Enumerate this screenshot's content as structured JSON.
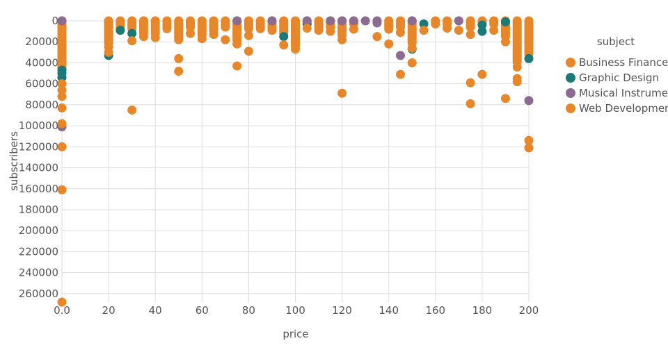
{
  "colors": {
    "business_finance": "#e8872a",
    "graphic_design": "#1b7a78",
    "musical_instruments": "#8b6b8f",
    "web_development": "#e8872a",
    "grid": "#dddddd",
    "text": "#555555"
  },
  "chart_data": {
    "type": "scatter",
    "title": "",
    "xlabel": "price",
    "ylabel": "subscribers",
    "xlim": [
      0,
      200
    ],
    "ylim": [
      0,
      268000
    ],
    "y_reversed": true,
    "x_ticks": [
      0,
      20,
      40,
      60,
      80,
      100,
      120,
      140,
      160,
      180,
      200
    ],
    "x_tick_labels": [
      "0.0",
      "20",
      "40",
      "60",
      "80",
      "100",
      "120",
      "140",
      "160",
      "180",
      "200"
    ],
    "y_ticks": [
      0,
      20000,
      40000,
      60000,
      80000,
      100000,
      120000,
      140000,
      160000,
      180000,
      200000,
      220000,
      240000,
      260000
    ],
    "y_tick_labels": [
      "0",
      "20000",
      "40000",
      "60000",
      "80000",
      "100000",
      "120000",
      "140000",
      "160000",
      "180000",
      "200000",
      "220000",
      "240000",
      "260000"
    ],
    "grid": true,
    "legend": {
      "title": "subject",
      "placement": "right"
    },
    "series": [
      {
        "name": "Business Finance",
        "color_key": "business_finance",
        "points": [
          [
            0,
            60000
          ],
          [
            0,
            66000
          ],
          [
            0,
            72000
          ],
          [
            0,
            83000
          ],
          [
            0,
            98000
          ],
          [
            0,
            120000
          ],
          [
            0,
            161000
          ],
          [
            0,
            268000
          ],
          [
            30,
            85000
          ],
          [
            50,
            36000
          ],
          [
            50,
            48000
          ],
          [
            75,
            43000
          ],
          [
            80,
            29000
          ],
          [
            120,
            69000
          ],
          [
            140,
            22000
          ],
          [
            145,
            51000
          ],
          [
            150,
            40000
          ],
          [
            175,
            59000
          ],
          [
            175,
            79000
          ],
          [
            180,
            51000
          ],
          [
            190,
            74000
          ],
          [
            195,
            44000
          ],
          [
            195,
            55000
          ],
          [
            195,
            58000
          ],
          [
            200,
            114000
          ],
          [
            200,
            121000
          ],
          [
            20,
            25000
          ],
          [
            20,
            30000
          ],
          [
            30,
            19000
          ],
          [
            35,
            15000
          ],
          [
            40,
            16000
          ],
          [
            55,
            12000
          ],
          [
            60,
            17000
          ],
          [
            65,
            13000
          ],
          [
            70,
            18000
          ],
          [
            75,
            22000
          ],
          [
            80,
            14000
          ],
          [
            95,
            23000
          ],
          [
            100,
            27000
          ],
          [
            105,
            7000
          ],
          [
            110,
            9000
          ],
          [
            115,
            10000
          ],
          [
            120,
            18000
          ],
          [
            125,
            8000
          ],
          [
            135,
            15000
          ],
          [
            140,
            8000
          ],
          [
            145,
            11000
          ],
          [
            150,
            26000
          ],
          [
            155,
            9000
          ],
          [
            165,
            7000
          ],
          [
            170,
            9000
          ],
          [
            175,
            13000
          ],
          [
            185,
            9000
          ],
          [
            190,
            20000
          ]
        ]
      },
      {
        "name": "Graphic Design",
        "color_key": "graphic_design",
        "points": [
          [
            0,
            47000
          ],
          [
            0,
            50000
          ],
          [
            0,
            54000
          ],
          [
            20,
            33000
          ],
          [
            25,
            9000
          ],
          [
            30,
            12000
          ],
          [
            95,
            15000
          ],
          [
            105,
            3000
          ],
          [
            150,
            27000
          ],
          [
            155,
            3000
          ],
          [
            180,
            10000
          ],
          [
            180,
            4000
          ],
          [
            190,
            1000
          ],
          [
            200,
            36000
          ]
        ]
      },
      {
        "name": "Musical Instruments",
        "color_key": "musical_instruments",
        "points": [
          [
            0,
            0
          ],
          [
            0,
            101000
          ],
          [
            75,
            0
          ],
          [
            90,
            0
          ],
          [
            105,
            0
          ],
          [
            115,
            0
          ],
          [
            120,
            0
          ],
          [
            125,
            0
          ],
          [
            130,
            0
          ],
          [
            135,
            0
          ],
          [
            135,
            2000
          ],
          [
            145,
            33000
          ],
          [
            150,
            0
          ],
          [
            170,
            0
          ],
          [
            200,
            76000
          ]
        ]
      },
      {
        "name": "Web Development",
        "color_key": "web_development",
        "columns": [
          {
            "x": 0,
            "y_max": 45000,
            "step": 1800
          },
          {
            "x": 20,
            "y_max": 22000,
            "step": 1500
          },
          {
            "x": 25,
            "y_max": 8000,
            "step": 1500
          },
          {
            "x": 30,
            "y_max": 8000,
            "step": 1500
          },
          {
            "x": 35,
            "y_max": 12000,
            "step": 1500
          },
          {
            "x": 40,
            "y_max": 12000,
            "step": 1500
          },
          {
            "x": 45,
            "y_max": 8000,
            "step": 1500
          },
          {
            "x": 50,
            "y_max": 18000,
            "step": 1500
          },
          {
            "x": 55,
            "y_max": 6000,
            "step": 1500
          },
          {
            "x": 60,
            "y_max": 14000,
            "step": 1500
          },
          {
            "x": 65,
            "y_max": 10000,
            "step": 1500
          },
          {
            "x": 70,
            "y_max": 6000,
            "step": 1500
          },
          {
            "x": 75,
            "y_max": 18000,
            "step": 1500
          },
          {
            "x": 80,
            "y_max": 8000,
            "step": 1500
          },
          {
            "x": 85,
            "y_max": 8000,
            "step": 1500
          },
          {
            "x": 90,
            "y_max": 10000,
            "step": 1500
          },
          {
            "x": 95,
            "y_max": 12000,
            "step": 1500
          },
          {
            "x": 100,
            "y_max": 24000,
            "step": 1500
          },
          {
            "x": 105,
            "y_max": 4000,
            "step": 1500
          },
          {
            "x": 110,
            "y_max": 6000,
            "step": 1500
          },
          {
            "x": 115,
            "y_max": 6000,
            "step": 1500
          },
          {
            "x": 120,
            "y_max": 14000,
            "step": 1500
          },
          {
            "x": 125,
            "y_max": 4000,
            "step": 1500
          },
          {
            "x": 140,
            "y_max": 6000,
            "step": 1500
          },
          {
            "x": 145,
            "y_max": 6000,
            "step": 1500
          },
          {
            "x": 150,
            "y_max": 22000,
            "step": 1500
          },
          {
            "x": 160,
            "y_max": 4000,
            "step": 1500
          },
          {
            "x": 165,
            "y_max": 4000,
            "step": 1500
          },
          {
            "x": 175,
            "y_max": 6000,
            "step": 1500
          },
          {
            "x": 180,
            "y_max": 3000,
            "step": 1500
          },
          {
            "x": 185,
            "y_max": 4000,
            "step": 1500
          },
          {
            "x": 190,
            "y_max": 16000,
            "step": 1500
          },
          {
            "x": 195,
            "y_max": 40000,
            "step": 1500
          },
          {
            "x": 200,
            "y_max": 32000,
            "step": 1500
          }
        ]
      }
    ]
  }
}
